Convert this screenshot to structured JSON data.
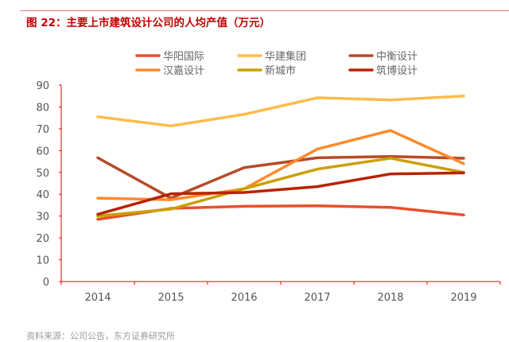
{
  "title": "图 22：主要上市建筑设计公司的人均产值（万元）",
  "source": "资料来源：公司公告，东方证券研究所",
  "chart_data": {
    "type": "line",
    "title": "图 22：主要上市建筑设计公司的人均产值（万元）",
    "xlabel": "",
    "ylabel": "",
    "categories": [
      "2014",
      "2015",
      "2016",
      "2017",
      "2018",
      "2019"
    ],
    "ylim": [
      0,
      90
    ],
    "yticks": [
      0,
      10,
      20,
      30,
      40,
      50,
      60,
      70,
      80,
      90
    ],
    "grid": false,
    "legend": "top",
    "axis_color": "#ff0000",
    "series": [
      {
        "name": "华阳国际",
        "color": "#e8502a",
        "values": [
          28.5,
          33.5,
          34.5,
          34.7,
          34.0,
          30.5
        ]
      },
      {
        "name": "华建集团",
        "color": "#ffbb4a",
        "values": [
          75.5,
          71.3,
          76.6,
          84.2,
          83.2,
          85.0
        ]
      },
      {
        "name": "中衡设计",
        "color": "#b84a2a",
        "values": [
          56.7,
          38.2,
          52.2,
          56.7,
          57.3,
          56.5
        ]
      },
      {
        "name": "汉嘉设计",
        "color": "#ff8a2a",
        "values": [
          38.2,
          37.5,
          42.5,
          60.7,
          69.2,
          54.0
        ]
      },
      {
        "name": "新城市",
        "color": "#c9a000",
        "values": [
          30.0,
          33.2,
          42.5,
          51.5,
          56.5,
          50.0
        ]
      },
      {
        "name": "筑博设计",
        "color": "#b82200",
        "values": [
          30.8,
          40.2,
          40.8,
          43.5,
          49.3,
          49.8
        ]
      }
    ]
  }
}
